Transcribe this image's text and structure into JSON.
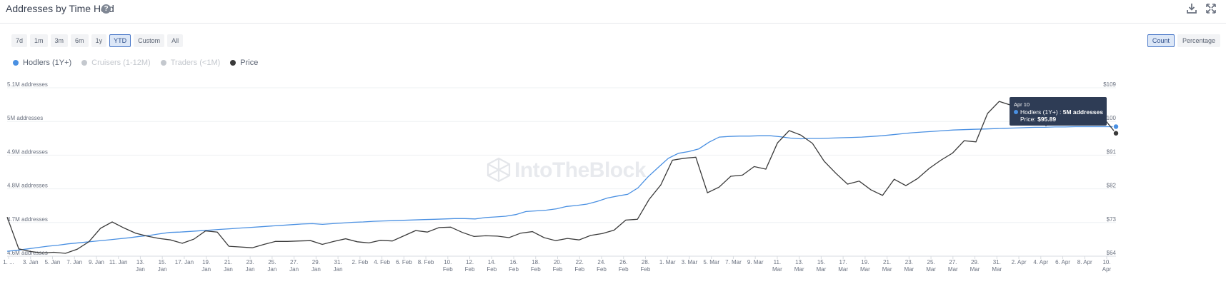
{
  "header": {
    "title": "Addresses by Time Held",
    "help": "?"
  },
  "range_buttons": [
    "7d",
    "1m",
    "3m",
    "6m",
    "1y",
    "YTD",
    "Custom",
    "All"
  ],
  "range_active": "YTD",
  "mode_buttons": [
    "Count",
    "Percentage"
  ],
  "mode_active": "Count",
  "legend": [
    {
      "label": "Hodlers (1Y+)",
      "color": "#4a90e2",
      "enabled": true
    },
    {
      "label": "Cruisers (1-12M)",
      "color": "#c4c8ce",
      "enabled": false
    },
    {
      "label": "Traders (<1M)",
      "color": "#c4c8ce",
      "enabled": false
    },
    {
      "label": "Price",
      "color": "#3a3a3a",
      "enabled": true
    }
  ],
  "watermark": "IntoTheBlock",
  "tooltip": {
    "date": "Apr 10",
    "line1_label": "Hodlers (1Y+) : ",
    "line1_value": "5M addresses",
    "line2_label": "Price: ",
    "line2_value": "$95.89"
  },
  "chart_data": {
    "type": "line",
    "title": "Addresses by Time Held",
    "y_left_ticks": [
      "5.1M addresses",
      "5M addresses",
      "4.9M addresses",
      "4.8M addresses",
      "4.7M addresses",
      "4.6M addresses"
    ],
    "y_left_range": [
      4.6,
      5.1
    ],
    "y_right_ticks": [
      "$109",
      "$100",
      "$91",
      "$82",
      "$73",
      "$64"
    ],
    "y_right_range": [
      64,
      109
    ],
    "x_ticks": [
      [
        "1. ...",
        ""
      ],
      [
        "3. Jan",
        ""
      ],
      [
        "5. Jan",
        ""
      ],
      [
        "7. Jan",
        ""
      ],
      [
        "9. Jan",
        ""
      ],
      [
        "11. Jan",
        ""
      ],
      [
        "13.",
        "Jan"
      ],
      [
        "15.",
        "Jan"
      ],
      [
        "17. Jan",
        ""
      ],
      [
        "19.",
        "Jan"
      ],
      [
        "21.",
        "Jan"
      ],
      [
        "23.",
        "Jan"
      ],
      [
        "25.",
        "Jan"
      ],
      [
        "27.",
        "Jan"
      ],
      [
        "29.",
        "Jan"
      ],
      [
        "31.",
        "Jan"
      ],
      [
        "2. Feb",
        ""
      ],
      [
        "4. Feb",
        ""
      ],
      [
        "6. Feb",
        ""
      ],
      [
        "8. Feb",
        ""
      ],
      [
        "10.",
        "Feb"
      ],
      [
        "12.",
        "Feb"
      ],
      [
        "14.",
        "Feb"
      ],
      [
        "16.",
        "Feb"
      ],
      [
        "18.",
        "Feb"
      ],
      [
        "20.",
        "Feb"
      ],
      [
        "22.",
        "Feb"
      ],
      [
        "24.",
        "Feb"
      ],
      [
        "26.",
        "Feb"
      ],
      [
        "28.",
        "Feb"
      ],
      [
        "1. Mar",
        ""
      ],
      [
        "3. Mar",
        ""
      ],
      [
        "5. Mar",
        ""
      ],
      [
        "7. Mar",
        ""
      ],
      [
        "9. Mar",
        ""
      ],
      [
        "11.",
        "Mar"
      ],
      [
        "13.",
        "Mar"
      ],
      [
        "15.",
        "Mar"
      ],
      [
        "17.",
        "Mar"
      ],
      [
        "19.",
        "Mar"
      ],
      [
        "21.",
        "Mar"
      ],
      [
        "23.",
        "Mar"
      ],
      [
        "25.",
        "Mar"
      ],
      [
        "27.",
        "Mar"
      ],
      [
        "29.",
        "Mar"
      ],
      [
        "31.",
        "Mar"
      ],
      [
        "2. Apr",
        ""
      ],
      [
        "4. Apr",
        ""
      ],
      [
        "6. Apr",
        ""
      ],
      [
        "8. Apr",
        ""
      ],
      [
        "10.",
        "Apr"
      ]
    ],
    "series": [
      {
        "name": "Hodlers (1Y+)",
        "axis": "left",
        "color": "#4a90e2",
        "values": [
          4.604,
          4.607,
          4.611,
          4.615,
          4.619,
          4.622,
          4.626,
          4.629,
          4.632,
          4.635,
          4.638,
          4.641,
          4.644,
          4.648,
          4.651,
          4.656,
          4.66,
          4.661,
          4.663,
          4.665,
          4.667,
          4.669,
          4.671,
          4.673,
          4.675,
          4.677,
          4.679,
          4.681,
          4.683,
          4.685,
          4.686,
          4.684,
          4.686,
          4.688,
          4.69,
          4.691,
          4.693,
          4.694,
          4.695,
          4.696,
          4.697,
          4.698,
          4.699,
          4.7,
          4.701,
          4.701,
          4.7,
          4.704,
          4.706,
          4.708,
          4.713,
          4.722,
          4.724,
          4.726,
          4.73,
          4.737,
          4.74,
          4.744,
          4.752,
          4.762,
          4.768,
          4.773,
          4.792,
          4.825,
          4.853,
          4.88,
          4.895,
          4.9,
          4.908,
          4.928,
          4.943,
          4.945,
          4.946,
          4.946,
          4.947,
          4.947,
          4.944,
          4.94,
          4.938,
          4.939,
          4.939,
          4.94,
          4.941,
          4.942,
          4.943,
          4.945,
          4.947,
          4.95,
          4.953,
          4.956,
          4.958,
          4.96,
          4.962,
          4.964,
          4.965,
          4.966,
          4.967,
          4.968,
          4.969,
          4.97,
          4.971,
          4.972,
          4.972,
          4.973,
          4.973,
          4.974,
          4.974,
          4.974,
          4.974,
          4.974
        ]
      },
      {
        "name": "Price",
        "axis": "right",
        "color": "#3a3a3a",
        "values": [
          73.5,
          65.0,
          64.3,
          63.9,
          64.1,
          63.8,
          64.9,
          66.9,
          70.5,
          72.2,
          70.6,
          69.2,
          68.4,
          67.8,
          67.4,
          66.5,
          67.6,
          69.8,
          69.5,
          65.7,
          65.5,
          65.3,
          66.2,
          67.0,
          67.0,
          67.1,
          67.2,
          66.2,
          67.0,
          67.7,
          66.9,
          66.6,
          67.3,
          67.1,
          68.5,
          69.9,
          69.5,
          70.7,
          70.8,
          69.4,
          68.3,
          68.5,
          68.4,
          68.0,
          69.2,
          69.6,
          68.0,
          67.2,
          67.8,
          67.4,
          68.6,
          69.1,
          70.0,
          72.7,
          72.9,
          78.2,
          82.1,
          88.7,
          89.2,
          89.5,
          80.0,
          81.5,
          84.4,
          84.7,
          87.0,
          86.3,
          93.3,
          96.6,
          95.4,
          93.2,
          88.4,
          85.2,
          82.3,
          83.1,
          80.8,
          79.3,
          83.6,
          81.9,
          83.8,
          86.5,
          88.7,
          90.6,
          93.9,
          93.6,
          101.2,
          104.4,
          103.4,
          104.0,
          101.9,
          97.9,
          100.8,
          100.8,
          101.0,
          100.6,
          99.7,
          95.89
        ]
      }
    ],
    "highlight": {
      "date": "Apr 10",
      "hodlers": "5M addresses",
      "price": "$95.89"
    },
    "grid": true,
    "legend_position": "top-left"
  }
}
